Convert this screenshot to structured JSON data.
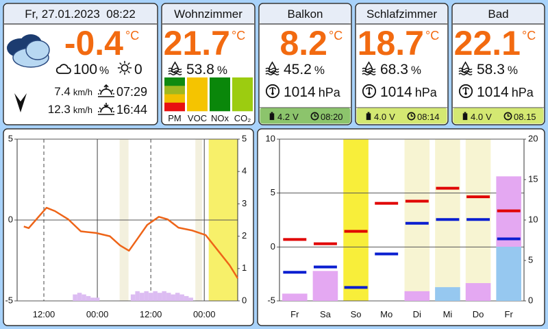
{
  "header": {
    "datetime": "Fr, 27.01.2023  08:22"
  },
  "outdoor": {
    "temperature": "-0.4",
    "temperature_unit": "°C",
    "clouds": "100",
    "clouds_unit": "%",
    "sunshine": "0",
    "wind": "7.4",
    "gust": "12.3",
    "wind_unit": "km/h",
    "sunrise": "07:29",
    "sunset": "16:44"
  },
  "rooms": [
    {
      "name": "Wohnzimmer",
      "temperature": "21.7",
      "temperature_unit": "°C",
      "humidity": "53.8",
      "humidity_unit": "%",
      "air_quality": [
        {
          "label": "PM",
          "colors": [
            "#108a10",
            "#a0b820",
            "#f0c000",
            "#e81010"
          ]
        },
        {
          "label": "VOC",
          "colors": [
            "#f5c400"
          ]
        },
        {
          "label": "NOx",
          "colors": [
            "#0a870a"
          ]
        },
        {
          "label": "CO₂",
          "colors": [
            "#9ccc10"
          ]
        }
      ]
    },
    {
      "name": "Balkon",
      "temperature": "8.2",
      "temperature_unit": "°C",
      "humidity": "45.2",
      "humidity_unit": "%",
      "pressure": "1014",
      "pressure_unit": "hPa",
      "battery": "4.2",
      "battery_unit": "V",
      "time": "08:20",
      "status_color": "#8cc46c"
    },
    {
      "name": "Schlafzimmer",
      "temperature": "18.7",
      "temperature_unit": "°C",
      "humidity": "68.3",
      "humidity_unit": "%",
      "pressure": "1014",
      "pressure_unit": "hPa",
      "battery": "4.0",
      "battery_unit": "V",
      "time": "08:14",
      "status_color": "#d4e872"
    },
    {
      "name": "Bad",
      "temperature": "22.1",
      "temperature_unit": "°C",
      "humidity": "58.3",
      "humidity_unit": "%",
      "pressure": "1014",
      "pressure_unit": "hPa",
      "battery": "4.0",
      "battery_unit": "V",
      "time": "08.15",
      "status_color": "#d4e872"
    }
  ],
  "chart_data": [
    {
      "type": "line",
      "xlim": [
        -6,
        43.5
      ],
      "xticks": [
        {
          "value": 0,
          "label": "12:00"
        },
        {
          "value": 12,
          "label": "00:00"
        },
        {
          "value": 24,
          "label": "12:00"
        },
        {
          "value": 36,
          "label": "00:00"
        }
      ],
      "xgrid_styles": [
        "dashed",
        "solid",
        "dashed",
        "solid"
      ],
      "ylim": [
        -5,
        5
      ],
      "yticks": [
        -5,
        0,
        5
      ],
      "y2lim": [
        0,
        5
      ],
      "y2ticks": [
        0,
        1,
        2,
        3,
        4,
        5
      ],
      "grid": true,
      "bands": [
        {
          "x": [
            17,
            19
          ],
          "color": "#f3f0de"
        },
        {
          "x": [
            34,
            35.5
          ],
          "color": "#f3f0de"
        },
        {
          "x": [
            37,
            43.5
          ],
          "color": "#f7f06a"
        }
      ],
      "series": [
        {
          "type": "line",
          "color": "#ee6418",
          "x": [
            -4.5,
            -3.4,
            -1.4,
            0.6,
            2.5,
            5.5,
            8.3,
            11.7,
            14.8,
            17.1,
            19.1,
            20.9,
            23.2,
            25.8,
            27.8,
            30.2,
            33.2,
            36.3,
            39.4,
            41.7,
            43.5
          ],
          "values": [
            -0.4,
            -0.5,
            0.13,
            0.76,
            0.55,
            0.04,
            -0.7,
            -0.8,
            -1.0,
            -1.57,
            -1.9,
            -1.2,
            -0.3,
            0.2,
            0.04,
            -0.47,
            -0.64,
            -0.93,
            -2.0,
            -2.8,
            -3.6
          ]
        },
        {
          "type": "bar",
          "axis": "y2",
          "color": "#dcbcf2",
          "x": [
            7,
            8,
            9,
            10,
            11,
            12,
            20,
            21,
            22,
            23,
            24,
            25,
            26,
            27,
            28,
            29,
            30,
            31,
            32,
            33
          ],
          "values": [
            0.2,
            0.25,
            0.2,
            0.15,
            0.1,
            0.1,
            0.2,
            0.3,
            0.25,
            0.3,
            0.25,
            0.3,
            0.25,
            0.3,
            0.25,
            0.2,
            0.25,
            0.2,
            0.15,
            0.1
          ]
        }
      ]
    },
    {
      "type": "bar",
      "categories": [
        "Fr",
        "Sa",
        "So",
        "Mo",
        "Di",
        "Mi",
        "Do",
        "Fr"
      ],
      "ylim": [
        -5,
        10
      ],
      "yticks": [
        -5,
        0,
        5,
        10
      ],
      "y2lim": [
        0,
        20
      ],
      "y2ticks": [
        0,
        5,
        10,
        15,
        20
      ],
      "grid": true,
      "column_colors": [
        "#ffffff",
        "#ffffff",
        "#f8ee3a",
        "#ffffff",
        "#f7f4d2",
        "#f7f4d2",
        "#f7f4d2",
        "#ffffff"
      ],
      "series": [
        {
          "type": "hline",
          "color": "#e00000",
          "values": [
            0.7,
            0.3,
            1.45,
            4.05,
            4.25,
            5.45,
            4.65,
            3.35
          ]
        },
        {
          "type": "hline",
          "color": "#0a1ed0",
          "values": [
            -2.35,
            -1.85,
            -3.75,
            -0.65,
            2.2,
            2.55,
            2.55,
            0.75
          ]
        },
        {
          "type": "bar",
          "axis": "y2",
          "color": "#96c8f0",
          "values": [
            0,
            0,
            0,
            0,
            0,
            1.7,
            0,
            6.7
          ]
        },
        {
          "type": "bar",
          "axis": "y2",
          "color": "#e4a8f2",
          "values": [
            0.9,
            3.7,
            0,
            0,
            1.2,
            0,
            2.2,
            8.7
          ]
        }
      ]
    }
  ]
}
